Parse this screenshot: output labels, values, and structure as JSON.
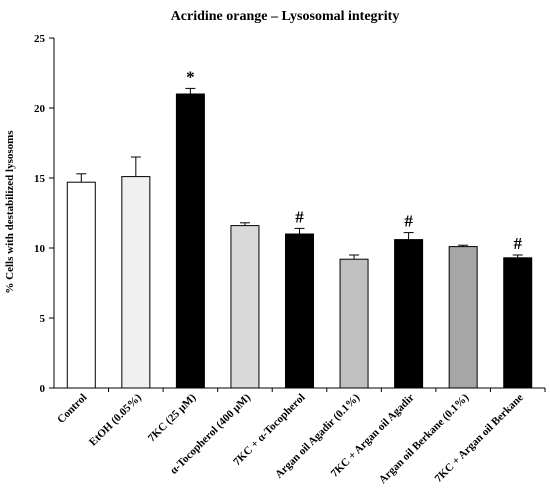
{
  "chart_data": {
    "type": "bar",
    "title": "Acridine orange – Lysosomal integrity",
    "ylabel": "% Cells with destabilized lysosoms",
    "xlabel": "",
    "ylim": [
      0,
      25
    ],
    "yticks": [
      0,
      5,
      10,
      15,
      20,
      25
    ],
    "grid": false,
    "categories": [
      "Control",
      "EtOH (0.05%)",
      "7KC (25 µM)",
      "α-Tocopherol (400 µM)",
      "7KC + α-Tocopherol",
      "Argan oil Agadir (0.1%)",
      "7KC + Argan oil Agadir",
      "Argan oil Berkane (0.1%)",
      "7KC + Argan oil Berkane"
    ],
    "values": [
      14.7,
      15.1,
      21.0,
      11.6,
      11.0,
      9.2,
      10.6,
      10.1,
      9.3
    ],
    "errors": [
      0.6,
      1.4,
      0.4,
      0.2,
      0.4,
      0.3,
      0.5,
      0.1,
      0.2
    ],
    "colors": [
      "#ffffff",
      "#f0f0f0",
      "#000000",
      "#d9d9d9",
      "#000000",
      "#c0c0c0",
      "#000000",
      "#a6a6a6",
      "#000000"
    ],
    "annotations": [
      "",
      "",
      "*",
      "",
      "#",
      "",
      "#",
      "",
      "#"
    ]
  }
}
